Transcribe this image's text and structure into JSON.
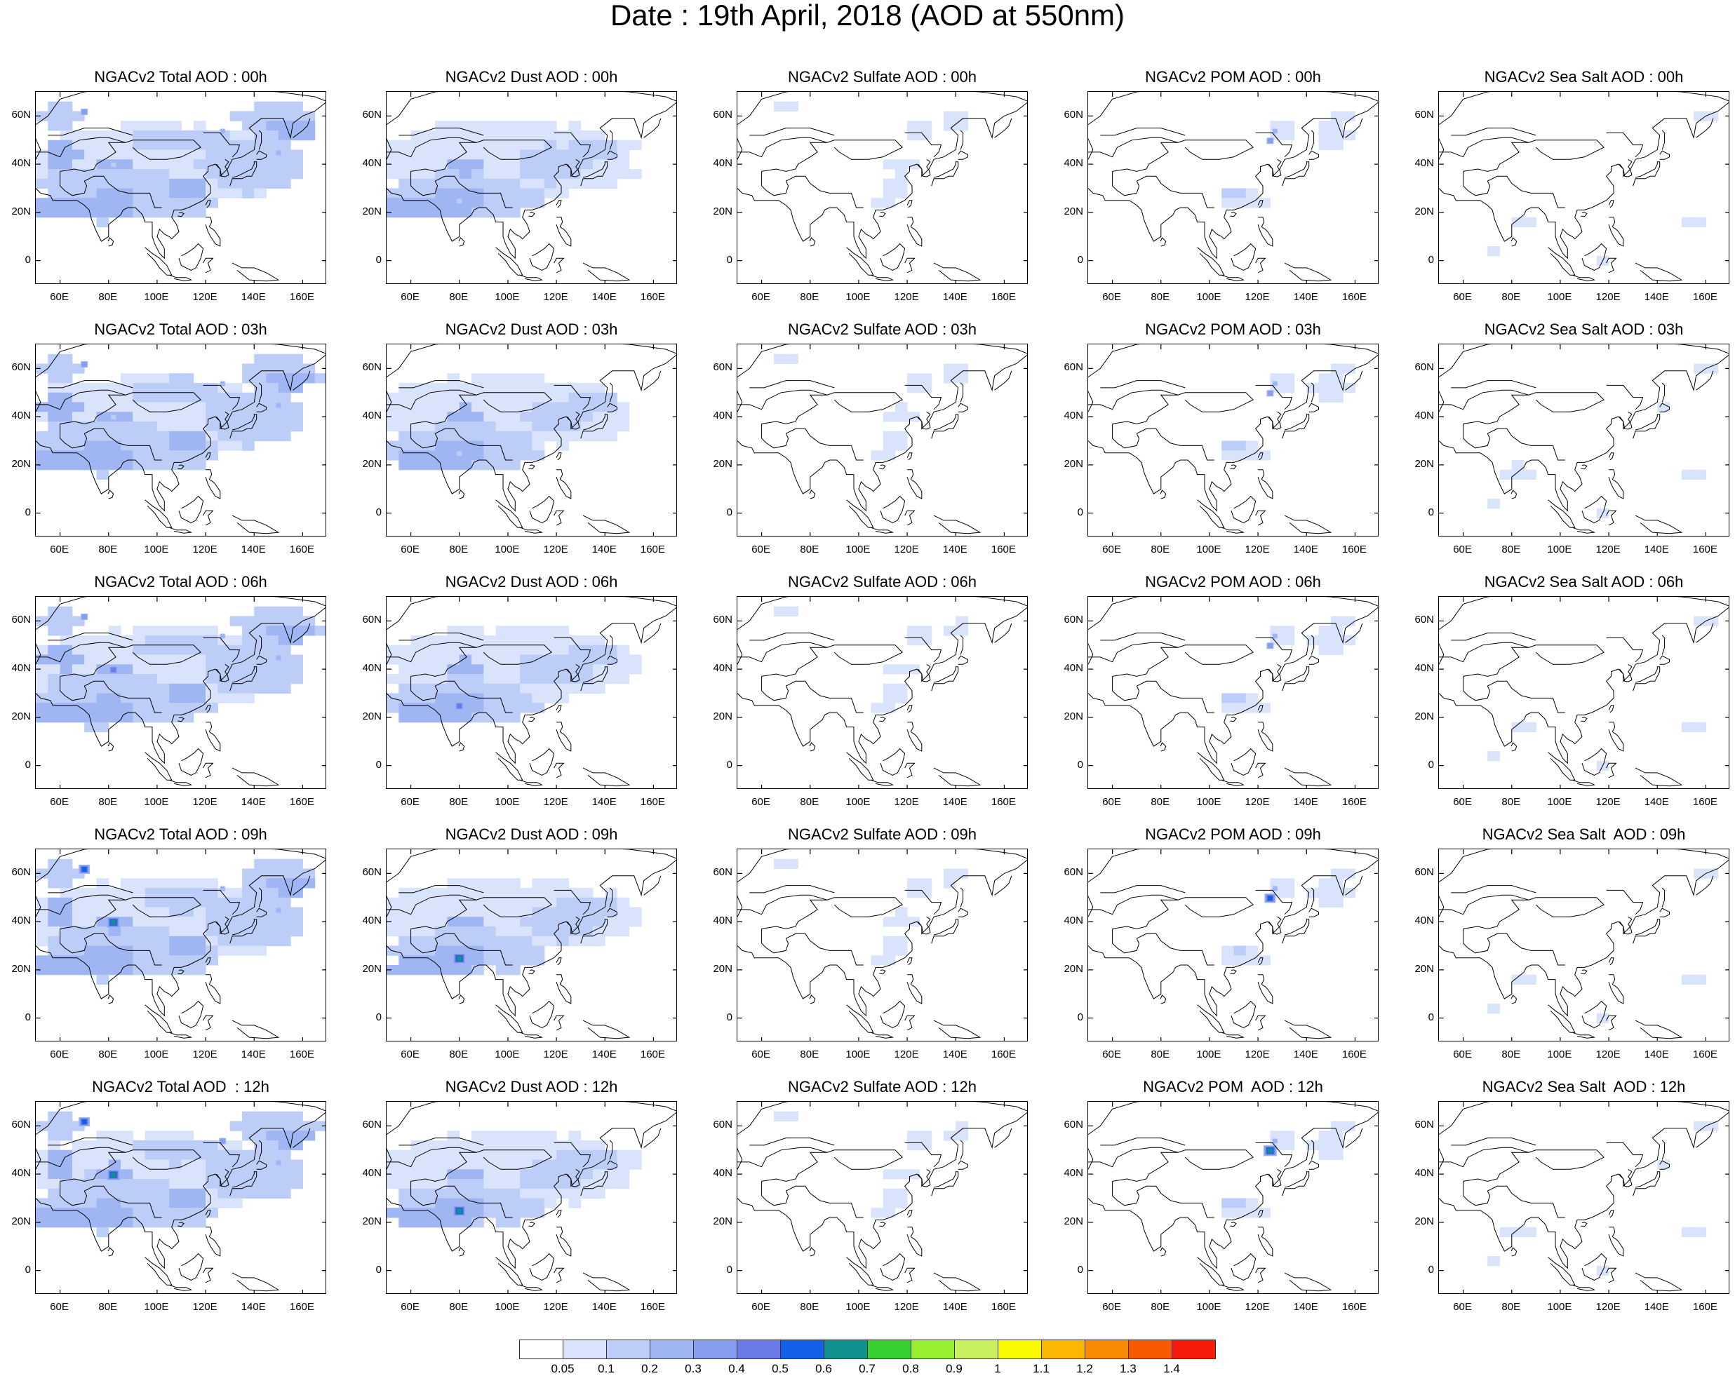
{
  "page": {
    "title": "Date : 19th April, 2018 (AOD at 550nm)"
  },
  "chart_data": {
    "type": "heatmap",
    "title": "Date : 19th April, 2018 (AOD at 550nm)",
    "description_grid": "5 rows (forecast hours) x 5 columns (species)",
    "panel_titles": [
      [
        "NGACv2 Total AOD : 00h",
        "NGACv2 Dust AOD : 00h",
        "NGACv2 Sulfate AOD : 00h",
        "NGACv2 POM AOD : 00h",
        "NGACv2 Sea Salt AOD : 00h"
      ],
      [
        "NGACv2 Total AOD : 03h",
        "NGACv2 Dust AOD : 03h",
        "NGACv2 Sulfate AOD : 03h",
        "NGACv2 POM AOD : 03h",
        "NGACv2 Sea Salt AOD : 03h"
      ],
      [
        "NGACv2 Total AOD : 06h",
        "NGACv2 Dust AOD : 06h",
        "NGACv2 Sulfate AOD : 06h",
        "NGACv2 POM AOD : 06h",
        "NGACv2 Sea Salt AOD : 06h"
      ],
      [
        "NGACv2 Total AOD : 09h",
        "NGACv2 Dust AOD : 09h",
        "NGACv2 Sulfate AOD : 09h",
        "NGACv2 POM AOD : 09h",
        "NGACv2 Sea Salt  AOD : 09h"
      ],
      [
        "NGACv2 Total AOD  : 12h",
        "NGACv2 Dust AOD : 12h",
        "NGACv2 Sulfate AOD : 12h",
        "NGACv2 POM  AOD : 12h",
        "NGACv2 Sea Salt  AOD : 12h"
      ]
    ],
    "x_axis": {
      "ticks": [
        "60E",
        "80E",
        "100E",
        "120E",
        "140E",
        "160E"
      ],
      "tick_values": [
        60,
        80,
        100,
        120,
        140,
        160
      ],
      "range": [
        50,
        170
      ]
    },
    "y_axis": {
      "ticks": [
        "60N",
        "40N",
        "20N",
        "0"
      ],
      "tick_values": [
        60,
        40,
        20,
        0
      ],
      "range": [
        -10,
        70
      ]
    },
    "colorbar": {
      "labels": [
        "0.05",
        "0.1",
        "0.2",
        "0.3",
        "0.4",
        "0.5",
        "0.6",
        "0.7",
        "0.8",
        "0.9",
        "1",
        "1.1",
        "1.2",
        "1.3",
        "1.4"
      ],
      "colors": [
        "#ffffff",
        "#d9e3fb",
        "#bccdf7",
        "#a0b6f3",
        "#879ef0",
        "#6a7ae6",
        "#1560e8",
        "#119090",
        "#38d030",
        "#98f030",
        "#c8f060",
        "#fbfb00",
        "#fbb800",
        "#f88a00",
        "#f85a00",
        "#f41b0c"
      ]
    },
    "hotspots_level_index": {
      "total": [
        [
          3,
          3,
          2,
          3,
          4,
          0
        ],
        [
          3,
          3,
          2,
          3,
          4,
          0
        ],
        [
          3,
          3,
          5,
          3,
          4,
          0
        ],
        [
          3,
          3,
          7,
          3,
          6,
          0
        ],
        [
          4,
          3,
          7,
          3,
          6,
          0
        ]
      ],
      "dust": [
        [
          3,
          3,
          2,
          0
        ],
        [
          3,
          3,
          2,
          0
        ],
        [
          3,
          3,
          5,
          0
        ],
        [
          3,
          3,
          7,
          0
        ],
        [
          3,
          3,
          7,
          0
        ]
      ],
      "pom": [
        [
          3,
          4
        ],
        [
          3,
          4
        ],
        [
          3,
          4
        ],
        [
          3,
          6
        ],
        [
          3,
          7
        ]
      ]
    }
  }
}
